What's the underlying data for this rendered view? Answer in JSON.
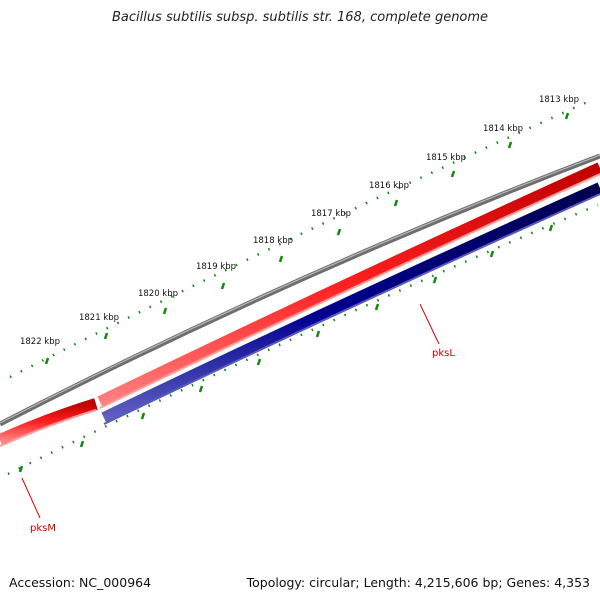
{
  "title": "Bacillus subtilis subsp. subtilis str. 168, complete genome",
  "footer": {
    "accession": "Accession: NC_000964",
    "topology": "Topology: circular; Length: 4,215,606 bp; Genes: 4,353"
  },
  "kbp_ticks": [
    "1813 kbp",
    "1814 kbp",
    "1815 kbp",
    "1816 kbp",
    "1817 kbp",
    "1818 kbp",
    "1819 kbp",
    "1820 kbp",
    "1821 kbp",
    "1822 kbp"
  ],
  "genes": [
    {
      "name": "pksL",
      "strand": "forward",
      "color": "#ee0000"
    },
    {
      "name": "pksM",
      "strand": "forward",
      "color": "#ee0000"
    }
  ],
  "colors": {
    "backbone": "#7a7a7a",
    "forward_strand": "#ee0000",
    "reverse_strand": "#000080",
    "tick_marks": "#118811"
  }
}
